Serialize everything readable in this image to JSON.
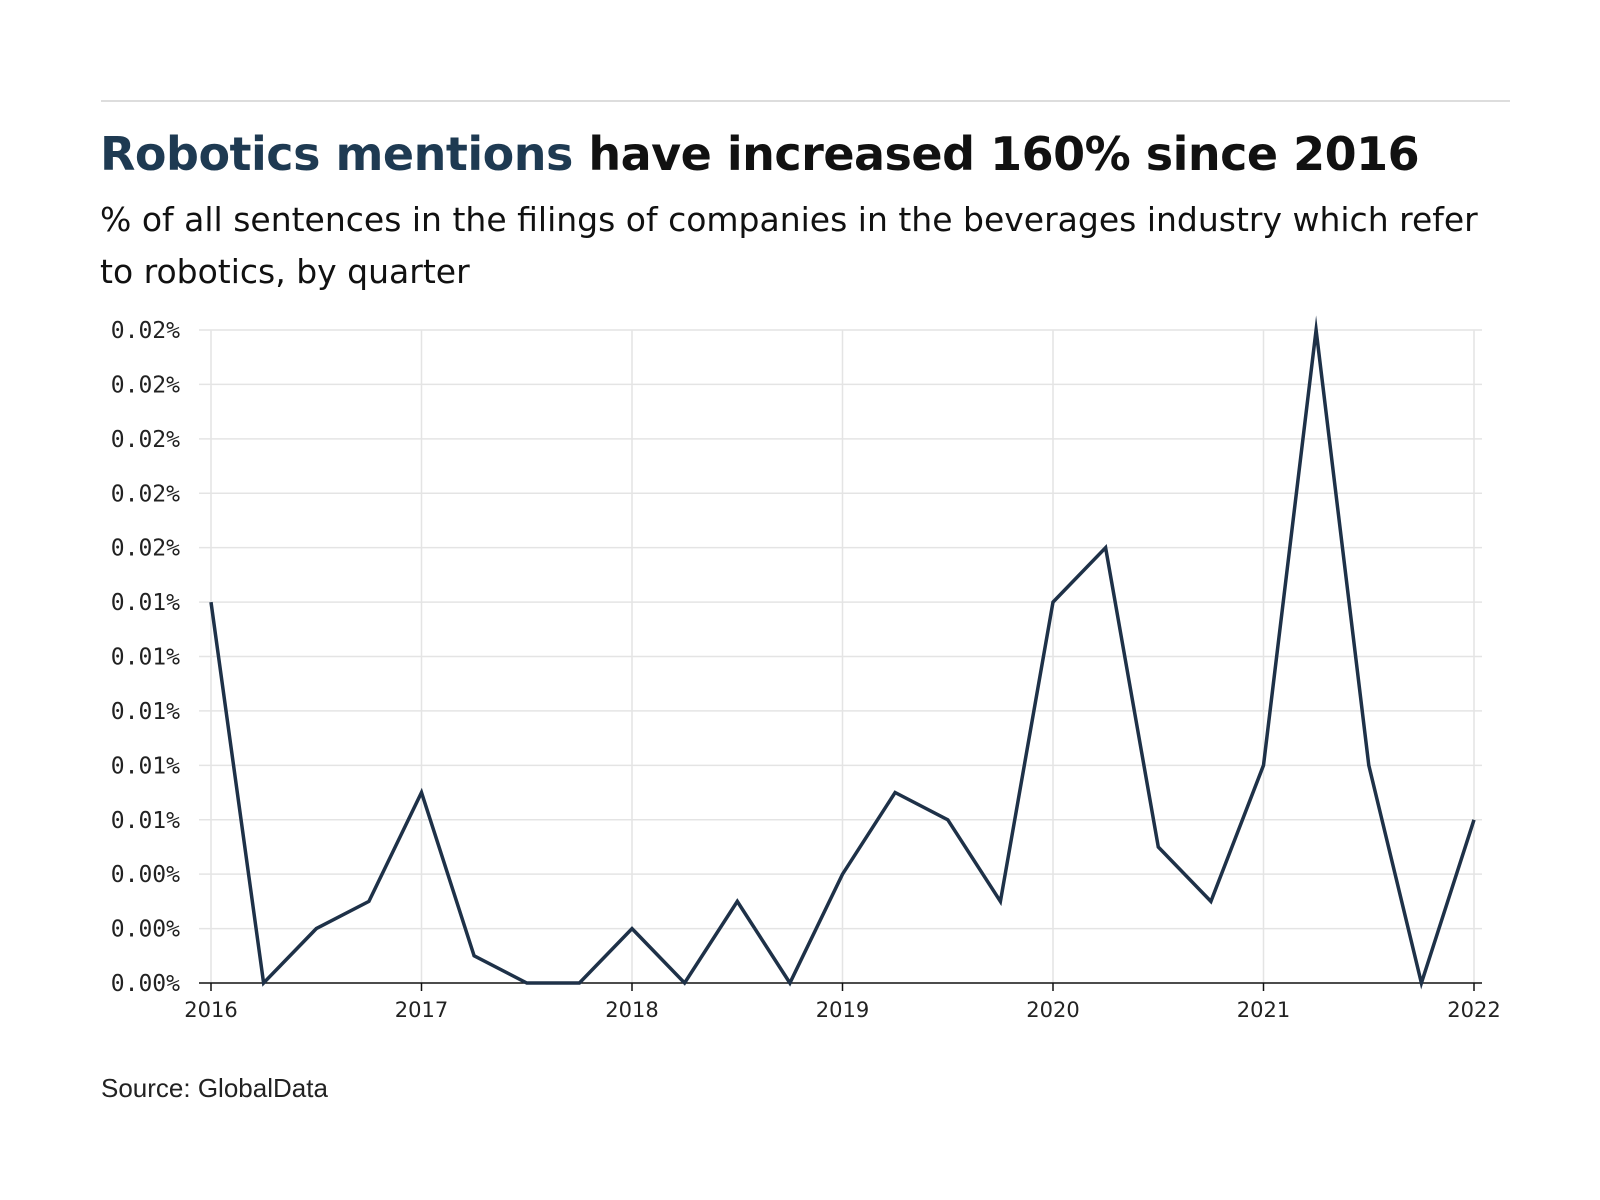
{
  "header": {
    "title_highlight": "Robotics mentions",
    "title_rest": " have increased 160% since 2016",
    "subtitle": "% of all sentences in the filings of companies in the beverages industry which refer to robotics, by quarter"
  },
  "footer": {
    "source": "Source: GlobalData"
  },
  "colors": {
    "line": "#1e3148",
    "highlight": "#1e3a52",
    "grid": "#e4e4e4",
    "axis": "#111111"
  },
  "chart_data": {
    "type": "line",
    "title": "Robotics mentions have increased 160% since 2016",
    "subtitle": "% of all sentences in the filings of companies in the beverages industry which refer to robotics, by quarter",
    "xlabel": "",
    "ylabel": "",
    "grid": true,
    "legend": "none",
    "ylim": [
      0,
      0.024
    ],
    "yticks": [
      0,
      0.002,
      0.004,
      0.006,
      0.008,
      0.01,
      0.012,
      0.014,
      0.016,
      0.018,
      0.02,
      0.022,
      0.024
    ],
    "ytick_labels": [
      "0.00%",
      "0.00%",
      "0.00%",
      "0.01%",
      "0.01%",
      "0.01%",
      "0.01%",
      "0.01%",
      "0.02%",
      "0.02%",
      "0.02%",
      "0.02%",
      "0.02%"
    ],
    "xlim": [
      2016,
      2022
    ],
    "xticks": [
      2016,
      2017,
      2018,
      2019,
      2020,
      2021,
      2022
    ],
    "xtick_labels": [
      "2016",
      "2017",
      "2018",
      "2019",
      "2020",
      "2021",
      "2022"
    ],
    "x": [
      2016.0,
      2016.25,
      2016.5,
      2016.75,
      2017.0,
      2017.25,
      2017.5,
      2017.75,
      2018.0,
      2018.25,
      2018.5,
      2018.75,
      2019.0,
      2019.25,
      2019.5,
      2019.75,
      2020.0,
      2020.25,
      2020.5,
      2020.75,
      2021.0,
      2021.25,
      2021.5,
      2021.75,
      2022.0
    ],
    "series": [
      {
        "values": [
          0.014,
          0.0,
          0.002,
          0.003,
          0.007,
          0.001,
          0.0,
          0.0,
          0.002,
          0.0,
          0.003,
          0.0,
          0.004,
          0.007,
          0.006,
          0.003,
          0.014,
          0.016,
          0.005,
          0.003,
          0.008,
          0.024,
          0.008,
          0.0,
          0.006
        ]
      }
    ]
  }
}
